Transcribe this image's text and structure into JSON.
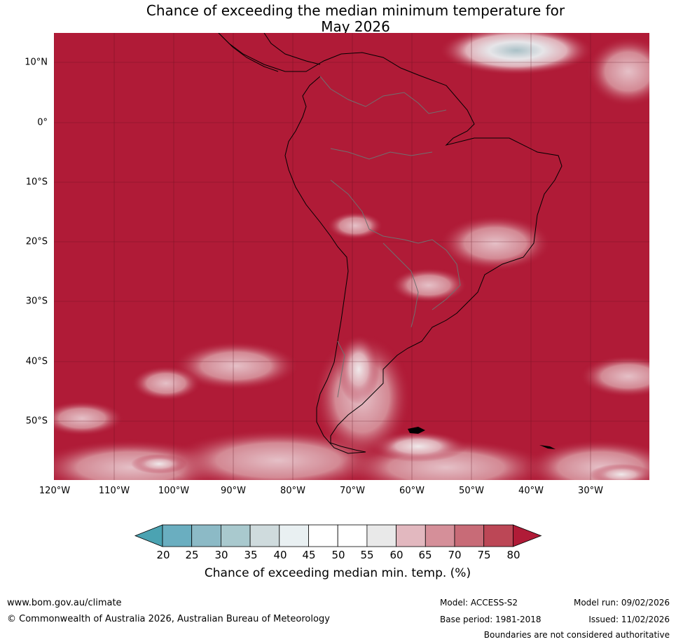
{
  "title": {
    "line1": "Chance of exceeding the median minimum temperature for",
    "line2": "May 2026"
  },
  "map": {
    "region": "South America",
    "fill_color": "#b01b37",
    "lat_labels": [
      "10°N",
      "0°",
      "10°S",
      "20°S",
      "30°S",
      "40°S",
      "50°S"
    ],
    "lon_labels": [
      "120°W",
      "110°W",
      "100°W",
      "90°W",
      "80°W",
      "70°W",
      "60°W",
      "50°W",
      "40°W",
      "30°W"
    ]
  },
  "colorbar": {
    "title": "Chance of exceeding median min. temp. (%)",
    "ticks": [
      "20",
      "25",
      "30",
      "35",
      "40",
      "45",
      "50",
      "55",
      "60",
      "65",
      "70",
      "75",
      "80"
    ],
    "colors": [
      "#4ba3b2",
      "#6aaec0",
      "#8cbac6",
      "#a9c9ce",
      "#cfdbdd",
      "#e9f0f2",
      "#ffffff",
      "#ffffff",
      "#e9e9e9",
      "#e2b8bf",
      "#d58f99",
      "#c86b77",
      "#bc4756",
      "#b01b37"
    ]
  },
  "footer": {
    "website": "www.bom.gov.au/climate",
    "copyright": "© Commonwealth of Australia 2026, Australian Bureau of Meteorology",
    "model": "Model: ACCESS-S2",
    "base_period": "Base period: 1981-2018",
    "model_run": "Model run: 09/02/2026",
    "issued": "Issued: 11/02/2026",
    "disclaimer": "Boundaries are not considered authoritative"
  }
}
